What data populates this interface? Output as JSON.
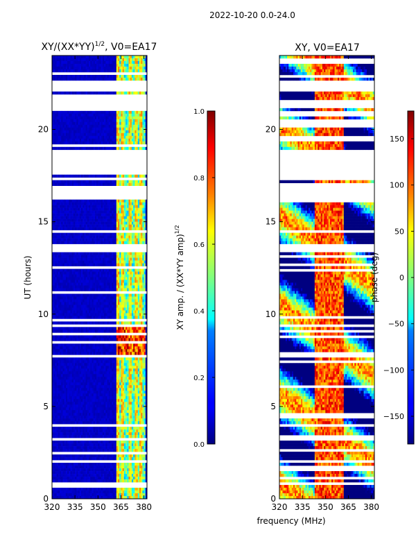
{
  "figure": {
    "suptitle": "2022-10-20 0.0-24.0",
    "shared_xlabel": "frequency (MHz)"
  },
  "chart_data": [
    {
      "type": "heatmap",
      "title_text": "XY/(XX*YY)",
      "title_sup": "1/2",
      "title_suffix": ", V0=EA17",
      "xlabel": "frequency (MHz)",
      "ylabel": "UT (hours)",
      "xlim": [
        320,
        382
      ],
      "ylim": [
        0,
        24
      ],
      "xticks": [
        320,
        335,
        350,
        365,
        380
      ],
      "yticks": [
        0,
        5,
        10,
        15,
        20
      ],
      "colorbar": {
        "label_text": "XY amp. / (XX*YY amp)",
        "label_sup": "1/2",
        "range": [
          0.0,
          1.0
        ],
        "ticks": [
          "0.0",
          "0.2",
          "0.4",
          "0.6",
          "0.8",
          "1.0"
        ],
        "colormap": "jet"
      },
      "gaps_hours": [
        [
          17.6,
          18.9
        ],
        [
          16.2,
          17.0
        ],
        [
          13.3,
          13.8
        ],
        [
          22.0,
          22.6
        ],
        [
          9.3,
          9.5
        ],
        [
          21.2,
          21.6
        ]
      ],
      "bright_channels_mhz": [
        363,
        366,
        371,
        375,
        378
      ],
      "notes": "Background ~0.05 amplitude; channels 363-380 MHz show 0.4-0.6; 8-9.3 h band reaches 0.8-1.0"
    },
    {
      "type": "heatmap",
      "title": "XY, V0=EA17",
      "xlabel": "frequency (MHz)",
      "ylabel": "",
      "xlim": [
        320,
        382
      ],
      "ylim": [
        0,
        24
      ],
      "xticks": [
        320,
        335,
        350,
        365,
        380
      ],
      "yticks": [
        0,
        5,
        10,
        15,
        20
      ],
      "colorbar": {
        "label": "phase (deg)",
        "range": [
          -180,
          180
        ],
        "ticks": [
          "150",
          "100",
          "50",
          "0",
          "−50",
          "−100",
          "−150"
        ],
        "tick_values": [
          150,
          100,
          50,
          0,
          -50,
          -100,
          -150
        ],
        "colormap": "jet"
      },
      "gaps_hours": [
        [
          17.6,
          18.9
        ],
        [
          16.2,
          17.0
        ],
        [
          13.3,
          13.8
        ],
        [
          22.0,
          22.6
        ],
        [
          9.3,
          9.5
        ],
        [
          21.2,
          21.6
        ]
      ],
      "notes": "Phase mostly 100-180 deg near 345-360 MHz, varied elsewhere"
    }
  ],
  "colors": {
    "axis": "#000000",
    "gap": "#ffffff"
  }
}
